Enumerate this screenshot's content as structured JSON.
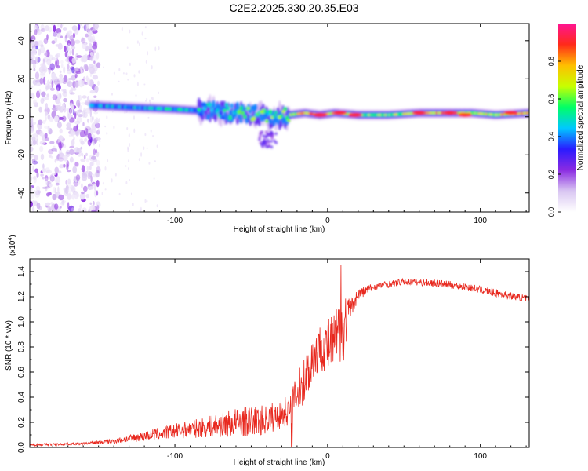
{
  "title": "C2E2.2025.330.20.35.E03",
  "chart_data": [
    {
      "type": "heatmap",
      "xlabel": "Height of straight line (km)",
      "ylabel": "Frequency (Hz)",
      "xlim": [
        -195,
        132
      ],
      "ylim": [
        -50,
        49
      ],
      "xticks": [
        -100,
        0,
        100
      ],
      "yticks": [
        -40,
        -20,
        0,
        20,
        40
      ],
      "colorbar": {
        "label": "Normalized spectral amplitude",
        "range": [
          0.0,
          1.0
        ],
        "ticks": [
          "0.0",
          "0.2",
          "0.4",
          "0.6",
          "0.8"
        ],
        "tick_values": [
          0.0,
          0.2,
          0.4,
          0.6,
          0.8
        ],
        "colormap": [
          "#ffffff",
          "#d9c6f2",
          "#8b2be2",
          "#2a1bff",
          "#00c8ff",
          "#00ff66",
          "#c8ff00",
          "#ffbf00",
          "#ff2a1a",
          "#ff1493"
        ]
      },
      "ridge": {
        "x": [
          -155,
          -130,
          -100,
          -80,
          -60,
          -45,
          -35,
          -25,
          -15,
          -5,
          5,
          20,
          40,
          60,
          80,
          95,
          110,
          132
        ],
        "freq": [
          6,
          5,
          4,
          3,
          2,
          1,
          -1,
          1,
          2,
          1,
          2,
          1,
          1,
          2,
          2,
          2,
          1,
          2
        ],
        "amplitude": [
          0.4,
          0.4,
          0.45,
          0.45,
          0.5,
          0.55,
          0.55,
          0.6,
          0.75,
          0.85,
          0.7,
          0.6,
          0.6,
          0.7,
          0.8,
          0.6,
          0.7,
          0.8
        ]
      },
      "noise_region_km": [
        -195,
        -150
      ]
    },
    {
      "type": "line",
      "xlabel": "Height of straight line (km)",
      "ylabel": "SNR (10 * v/v)",
      "y_multiplier": "(x10",
      "y_multiplier_exp": "4",
      "y_multiplier_close": ")",
      "xlim": [
        -195,
        132
      ],
      "ylim": [
        0.0,
        1.5
      ],
      "xticks": [
        -100,
        0,
        100
      ],
      "yticks": [
        "0.0",
        "0.2",
        "0.4",
        "0.6",
        "0.8",
        "1.0",
        "1.2",
        "1.4"
      ],
      "ytick_values": [
        0.0,
        0.2,
        0.4,
        0.6,
        0.8,
        1.0,
        1.2,
        1.4
      ],
      "color": "#e8281e",
      "envelope": {
        "x": [
          -195,
          -160,
          -140,
          -120,
          -100,
          -80,
          -60,
          -40,
          -25,
          -20,
          -15,
          -10,
          -5,
          0,
          5,
          10,
          15,
          20,
          30,
          50,
          70,
          90,
          110,
          132
        ],
        "mean": [
          0.02,
          0.03,
          0.05,
          0.09,
          0.13,
          0.16,
          0.2,
          0.22,
          0.3,
          0.4,
          0.55,
          0.7,
          0.8,
          0.8,
          0.85,
          0.95,
          1.1,
          1.22,
          1.28,
          1.32,
          1.31,
          1.28,
          1.23,
          1.18
        ],
        "spread": [
          0.01,
          0.01,
          0.02,
          0.04,
          0.06,
          0.08,
          0.12,
          0.12,
          0.12,
          0.18,
          0.2,
          0.22,
          0.18,
          0.22,
          0.25,
          0.3,
          0.08,
          0.05,
          0.03,
          0.025,
          0.03,
          0.03,
          0.03,
          0.03
        ]
      }
    }
  ]
}
